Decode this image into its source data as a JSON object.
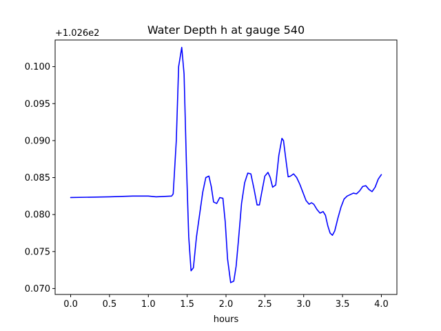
{
  "chart_data": {
    "type": "line",
    "title": "Water Depth h at gauge 540",
    "xlabel": "hours",
    "ylabel": "",
    "offset_label": "+1.026e2",
    "xlim": [
      -0.2,
      4.2
    ],
    "ylim": [
      0.0692,
      0.1036
    ],
    "grid": false,
    "xticks": [
      {
        "value": 0.0,
        "label": "0.0"
      },
      {
        "value": 0.5,
        "label": "0.5"
      },
      {
        "value": 1.0,
        "label": "1.0"
      },
      {
        "value": 1.5,
        "label": "1.5"
      },
      {
        "value": 2.0,
        "label": "2.0"
      },
      {
        "value": 2.5,
        "label": "2.5"
      },
      {
        "value": 3.0,
        "label": "3.0"
      },
      {
        "value": 3.5,
        "label": "3.5"
      },
      {
        "value": 4.0,
        "label": "4.0"
      }
    ],
    "yticks": [
      {
        "value": 0.07,
        "label": "0.070"
      },
      {
        "value": 0.075,
        "label": "0.075"
      },
      {
        "value": 0.08,
        "label": "0.080"
      },
      {
        "value": 0.085,
        "label": "0.085"
      },
      {
        "value": 0.09,
        "label": "0.090"
      },
      {
        "value": 0.095,
        "label": "0.095"
      },
      {
        "value": 0.1,
        "label": "0.100"
      }
    ],
    "series": [
      {
        "color": "#0000ff",
        "x": [
          0.0,
          0.5,
          0.8,
          1.0,
          1.1,
          1.3,
          1.32,
          1.36,
          1.39,
          1.43,
          1.46,
          1.49,
          1.52,
          1.55,
          1.58,
          1.62,
          1.66,
          1.7,
          1.74,
          1.78,
          1.81,
          1.84,
          1.88,
          1.92,
          1.96,
          1.99,
          2.02,
          2.06,
          2.1,
          2.13,
          2.16,
          2.2,
          2.24,
          2.28,
          2.32,
          2.36,
          2.4,
          2.43,
          2.46,
          2.5,
          2.54,
          2.57,
          2.6,
          2.64,
          2.68,
          2.72,
          2.74,
          2.77,
          2.8,
          2.83,
          2.87,
          2.91,
          2.95,
          2.99,
          3.03,
          3.07,
          3.1,
          3.13,
          3.17,
          3.21,
          3.25,
          3.28,
          3.31,
          3.34,
          3.37,
          3.4,
          3.44,
          3.48,
          3.52,
          3.56,
          3.6,
          3.64,
          3.68,
          3.72,
          3.76,
          3.8,
          3.84,
          3.88,
          3.92,
          3.96,
          4.0
        ],
        "y": [
          0.0823,
          0.0824,
          0.0825,
          0.0825,
          0.0824,
          0.0825,
          0.0828,
          0.09,
          0.1,
          0.1026,
          0.099,
          0.087,
          0.077,
          0.0724,
          0.0728,
          0.077,
          0.08,
          0.083,
          0.085,
          0.0852,
          0.0838,
          0.0817,
          0.0815,
          0.0823,
          0.0822,
          0.079,
          0.074,
          0.0708,
          0.071,
          0.073,
          0.0765,
          0.0815,
          0.0843,
          0.0856,
          0.0855,
          0.0835,
          0.0813,
          0.0813,
          0.083,
          0.0852,
          0.0857,
          0.085,
          0.0837,
          0.084,
          0.088,
          0.0903,
          0.09,
          0.0875,
          0.0851,
          0.0852,
          0.0855,
          0.085,
          0.0841,
          0.083,
          0.0819,
          0.0814,
          0.0816,
          0.0814,
          0.0807,
          0.0802,
          0.0804,
          0.0799,
          0.0785,
          0.0775,
          0.0772,
          0.0778,
          0.0795,
          0.081,
          0.0821,
          0.0825,
          0.0827,
          0.0829,
          0.0828,
          0.0832,
          0.0838,
          0.0839,
          0.0834,
          0.0831,
          0.0837,
          0.0848,
          0.0854
        ]
      }
    ]
  }
}
